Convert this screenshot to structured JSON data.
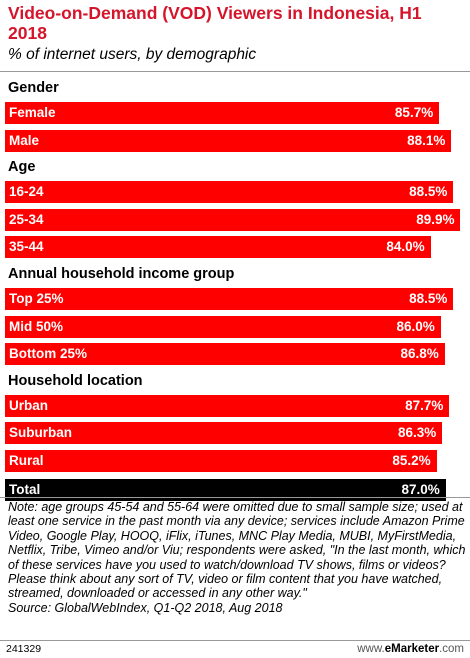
{
  "chart_data": {
    "type": "bar",
    "orientation": "horizontal",
    "title": "Video-on-Demand (VOD) Viewers in Indonesia, H1 2018",
    "subtitle": "% of internet users, by demographic",
    "unit": "%",
    "xlim": [
      0,
      90
    ],
    "groups": [
      {
        "name": "Gender",
        "items": [
          {
            "label": "Female",
            "value": 85.7,
            "display": "85.7%"
          },
          {
            "label": "Male",
            "value": 88.1,
            "display": "88.1%"
          }
        ]
      },
      {
        "name": "Age",
        "items": [
          {
            "label": "16-24",
            "value": 88.5,
            "display": "88.5%"
          },
          {
            "label": "25-34",
            "value": 89.9,
            "display": "89.9%"
          },
          {
            "label": "35-44",
            "value": 84.0,
            "display": "84.0%"
          }
        ]
      },
      {
        "name": "Annual household income group",
        "items": [
          {
            "label": "Top 25%",
            "value": 88.5,
            "display": "88.5%"
          },
          {
            "label": "Mid 50%",
            "value": 86.0,
            "display": "86.0%"
          },
          {
            "label": "Bottom 25%",
            "value": 86.8,
            "display": "86.8%"
          }
        ]
      },
      {
        "name": "Household location",
        "items": [
          {
            "label": "Urban",
            "value": 87.7,
            "display": "87.7%"
          },
          {
            "label": "Suburban",
            "value": 86.3,
            "display": "86.3%"
          },
          {
            "label": "Rural",
            "value": 85.2,
            "display": "85.2%"
          }
        ]
      }
    ],
    "total": {
      "label": "Total",
      "value": 87.0,
      "display": "87.0%"
    },
    "colors": {
      "bar": "#ff0000",
      "total": "#000000",
      "title": "#d4152b"
    }
  },
  "note": "Note: age groups 45-54 and 55-64 were omitted due to small sample size; used at least one service in the past month via any device; services include Amazon Prime Video, Google Play, HOOQ, iFlix, iTunes, MNC Play Media, MUBI, MyFirstMedia, Netflix, Tribe, Vimeo and/or Viu; respondents were asked, \"In the last month, which of these services have you used to watch/download TV shows, films or videos? Please think about any sort of TV, video or film content that you have watched, streamed, downloaded or accessed in any other way.\"",
  "source": "Source: GlobalWebIndex, Q1-Q2 2018, Aug 2018",
  "footer": {
    "chart_id": "241329",
    "brand_prefix": "www.",
    "brand_name": "eMarketer",
    "brand_suffix": ".com"
  }
}
